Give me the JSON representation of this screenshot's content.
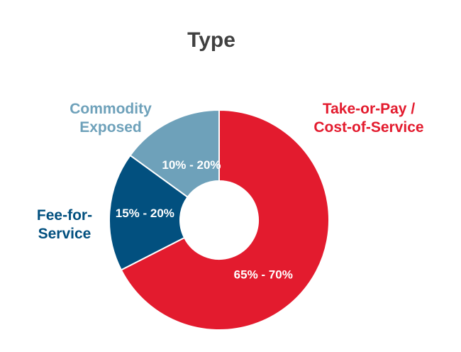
{
  "chart_data": {
    "type": "pie",
    "title": "Type",
    "donut": true,
    "slices": [
      {
        "name_lines": [
          "Take-or-Pay /",
          "Cost-of-Service"
        ],
        "value_label": "65% - 70%",
        "value": 67.5,
        "color": "#E31B2E"
      },
      {
        "name_lines": [
          "Fee-for-",
          "Service"
        ],
        "value_label": "15% - 20%",
        "value": 17.5,
        "color": "#02507F"
      },
      {
        "name_lines": [
          "Commodity",
          "Exposed"
        ],
        "value_label": "10% - 20%",
        "value": 15,
        "color": "#6EA1BA"
      }
    ],
    "start_angle": "12 o'clock",
    "direction": "clockwise",
    "legend": "none"
  }
}
